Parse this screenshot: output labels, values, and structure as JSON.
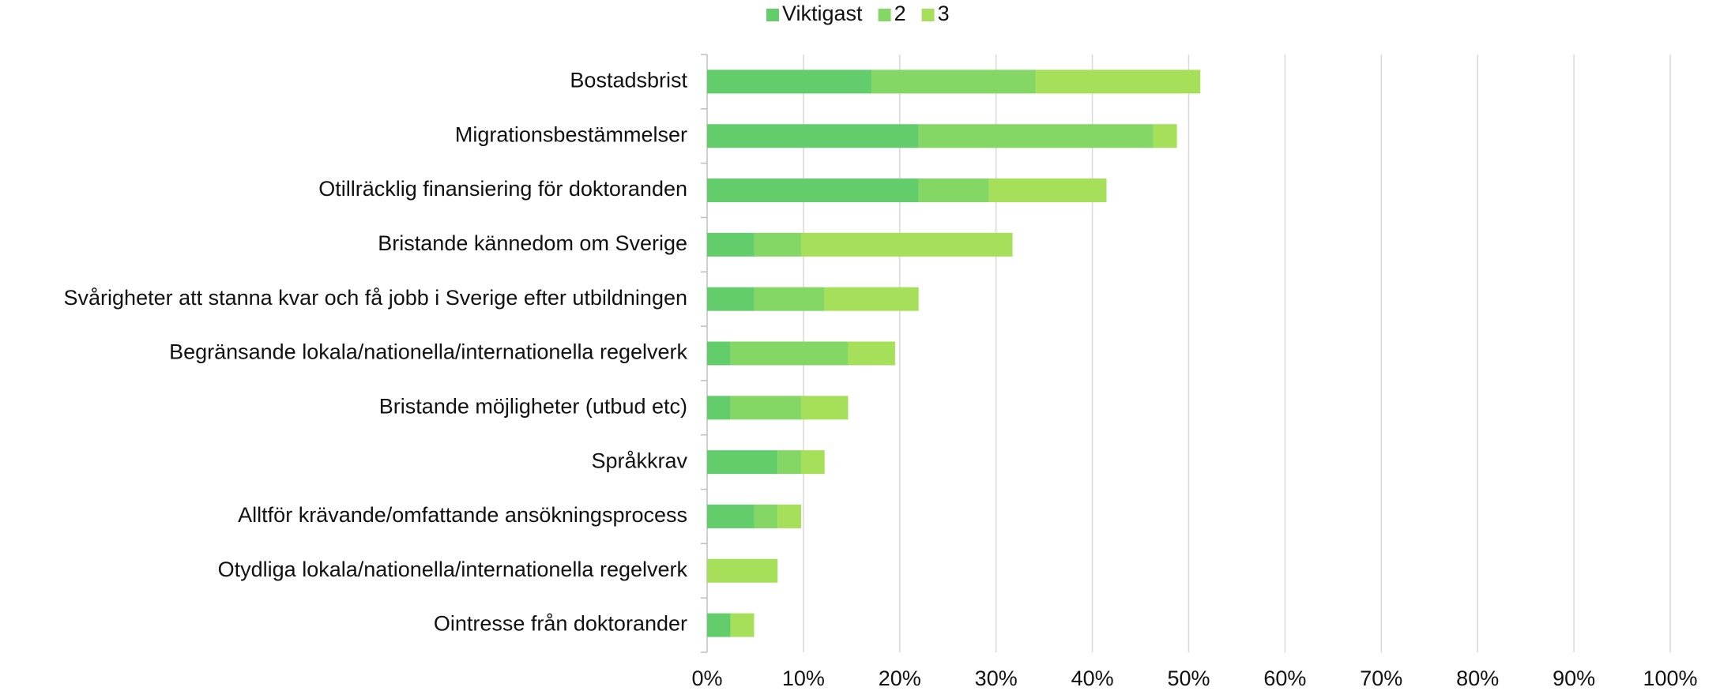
{
  "chart_data": {
    "type": "stacked_barh",
    "categories": [
      "Bostadsbrist",
      "Migrationsbestämmelser",
      "Otillräcklig finansiering för doktoranden",
      "Bristande kännedom om Sverige",
      "Svårigheter att stanna kvar och få jobb i Sverige efter utbildningen",
      "Begränsande lokala/nationella/internationella regelverk",
      "Bristande möjligheter (utbud etc)",
      "Språkkrav",
      "Alltför krävande/omfattande ansökningsprocess",
      "Otydliga lokala/nationella/internationella regelverk",
      "Ointresse från doktorander"
    ],
    "series": [
      {
        "name": "Viktigast",
        "color": "#63cd6c",
        "values": [
          17.07,
          21.95,
          21.95,
          4.88,
          4.88,
          2.44,
          2.44,
          7.32,
          4.88,
          0,
          2.44
        ]
      },
      {
        "name": "2",
        "color": "#84d665",
        "values": [
          17.07,
          24.39,
          7.32,
          4.88,
          7.32,
          12.2,
          7.32,
          2.44,
          2.44,
          0,
          0
        ]
      },
      {
        "name": "3",
        "color": "#a6e05b",
        "values": [
          17.07,
          2.44,
          12.2,
          21.95,
          9.76,
          4.88,
          4.88,
          2.44,
          2.44,
          7.32,
          2.44
        ]
      }
    ],
    "xlim": [
      0,
      100
    ],
    "xticks": [
      {
        "value": 0,
        "label": "0%"
      },
      {
        "value": 10,
        "label": "10%"
      },
      {
        "value": 20,
        "label": "20%"
      },
      {
        "value": 30,
        "label": "30%"
      },
      {
        "value": 40,
        "label": "40%"
      },
      {
        "value": 50,
        "label": "50%"
      },
      {
        "value": 60,
        "label": "60%"
      },
      {
        "value": 70,
        "label": "70%"
      },
      {
        "value": 80,
        "label": "80%"
      },
      {
        "value": 90,
        "label": "90%"
      },
      {
        "value": 100,
        "label": "100%"
      }
    ],
    "grid": true,
    "legend": "top"
  }
}
